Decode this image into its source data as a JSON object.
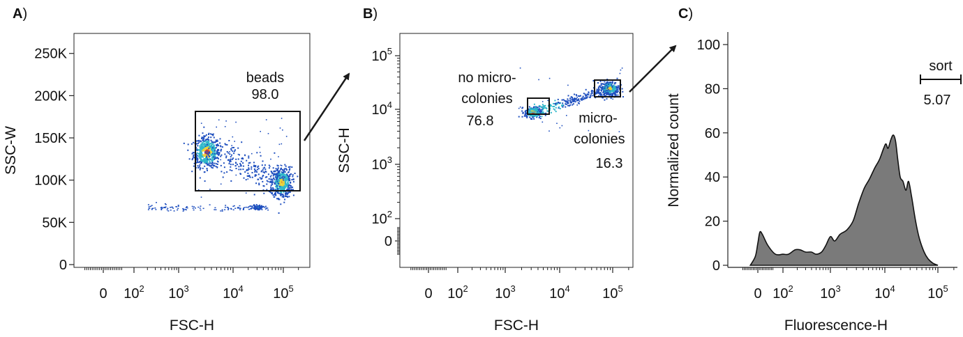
{
  "panels": {
    "A": {
      "label": "A",
      "paren": ")",
      "xlabel": "FSC-H",
      "ylabel": "SSC-W",
      "xticks": [
        {
          "base": "0",
          "exp": ""
        },
        {
          "base": "10",
          "exp": "2"
        },
        {
          "base": "10",
          "exp": "3"
        },
        {
          "base": "10",
          "exp": "4"
        },
        {
          "base": "10",
          "exp": "5"
        }
      ],
      "yticks": [
        "0",
        "50K",
        "100K",
        "150K",
        "200K",
        "250K"
      ],
      "gate": {
        "name": "beads",
        "value": "98.0"
      }
    },
    "B": {
      "label": "B",
      "paren": ")",
      "xlabel": "FSC-H",
      "ylabel": "SSC-H",
      "xticks": [
        {
          "base": "0",
          "exp": ""
        },
        {
          "base": "10",
          "exp": "2"
        },
        {
          "base": "10",
          "exp": "3"
        },
        {
          "base": "10",
          "exp": "4"
        },
        {
          "base": "10",
          "exp": "5"
        }
      ],
      "yticks": [
        {
          "base": "0",
          "exp": ""
        },
        {
          "base": "10",
          "exp": "2"
        },
        {
          "base": "10",
          "exp": "3"
        },
        {
          "base": "10",
          "exp": "4"
        },
        {
          "base": "10",
          "exp": "5"
        }
      ],
      "gate_left": {
        "line1": "no micro-",
        "line2": "colonies",
        "value": "76.8"
      },
      "gate_right": {
        "line1": "micro-",
        "line2": "colonies",
        "value": "16.3"
      }
    },
    "C": {
      "label": "C",
      "paren": ")",
      "xlabel": "Fluorescence-H",
      "ylabel": "Normalized count",
      "xticks": [
        {
          "base": "0",
          "exp": ""
        },
        {
          "base": "10",
          "exp": "2"
        },
        {
          "base": "10",
          "exp": "3"
        },
        {
          "base": "10",
          "exp": "4"
        },
        {
          "base": "10",
          "exp": "5"
        }
      ],
      "yticks": [
        "0",
        "20",
        "40",
        "60",
        "80",
        "100"
      ],
      "gate": {
        "name": "sort",
        "value": "5.07"
      }
    }
  },
  "colors": {
    "histogram_fill": "#7a7a7a",
    "density_low": "#1f4fbf",
    "density_mid": "#2fb7c9",
    "density_high": "#e8d23a",
    "density_peak": "#e2462b"
  },
  "chart_data": [
    {
      "type": "scatter",
      "title": "",
      "xlabel": "FSC-H",
      "ylabel": "SSC-W",
      "x_scale": "biexponential",
      "y_scale": "linear",
      "ylim": [
        0,
        262144
      ],
      "clusters": [
        {
          "x_center": 3200,
          "y_center": 136000,
          "density": "high"
        },
        {
          "x_center": 90000,
          "y_center": 97000,
          "density": "high"
        },
        {
          "x_center": 30000,
          "y_center": 68000,
          "density": "low"
        }
      ],
      "gates": [
        {
          "name": "beads",
          "percent": 98.0,
          "x_range": [
            2600,
            150000
          ],
          "y_range": [
            82000,
            175000
          ]
        }
      ]
    },
    {
      "type": "scatter",
      "title": "",
      "xlabel": "FSC-H",
      "ylabel": "SSC-H",
      "x_scale": "biexponential",
      "y_scale": "biexponential",
      "clusters": [
        {
          "x_center": 3200,
          "y_center": 9000,
          "density": "high"
        },
        {
          "x_center": 90000,
          "y_center": 25000,
          "density": "high"
        }
      ],
      "gates": [
        {
          "name": "no micro-colonies",
          "percent": 76.8,
          "x_range": [
            2600,
            6200
          ],
          "y_range": [
            7500,
            14000
          ]
        },
        {
          "name": "micro-colonies",
          "percent": 16.3,
          "x_range": [
            45000,
            140000
          ],
          "y_range": [
            17000,
            35000
          ]
        }
      ]
    },
    {
      "type": "area",
      "title": "",
      "xlabel": "Fluorescence-H",
      "ylabel": "Normalized count",
      "x_scale": "biexponential",
      "ylim": [
        0,
        100
      ],
      "curve": [
        [
          -30,
          0
        ],
        [
          -10,
          4
        ],
        [
          0,
          10
        ],
        [
          8,
          15
        ],
        [
          18,
          14
        ],
        [
          40,
          9
        ],
        [
          70,
          5
        ],
        [
          100,
          5
        ],
        [
          130,
          5
        ],
        [
          180,
          7
        ],
        [
          230,
          7
        ],
        [
          300,
          6
        ],
        [
          400,
          6
        ],
        [
          500,
          5
        ],
        [
          650,
          6
        ],
        [
          800,
          9
        ],
        [
          1000,
          13
        ],
        [
          1200,
          11
        ],
        [
          1500,
          14
        ],
        [
          2000,
          16
        ],
        [
          2600,
          20
        ],
        [
          3300,
          28
        ],
        [
          4200,
          35
        ],
        [
          5200,
          39
        ],
        [
          6500,
          44
        ],
        [
          8000,
          48
        ],
        [
          9500,
          53
        ],
        [
          10500,
          55
        ],
        [
          11500,
          53
        ],
        [
          13000,
          57
        ],
        [
          14500,
          59
        ],
        [
          16000,
          56
        ],
        [
          17500,
          48
        ],
        [
          19500,
          40
        ],
        [
          22000,
          38
        ],
        [
          25000,
          34
        ],
        [
          28000,
          38
        ],
        [
          32000,
          31
        ],
        [
          38000,
          20
        ],
        [
          45000,
          12
        ],
        [
          55000,
          6
        ],
        [
          65000,
          3
        ],
        [
          80000,
          1
        ],
        [
          100000,
          0
        ]
      ],
      "gates": [
        {
          "name": "sort",
          "percent": 5.07,
          "x_range": [
            40000,
            230000
          ]
        }
      ]
    }
  ]
}
